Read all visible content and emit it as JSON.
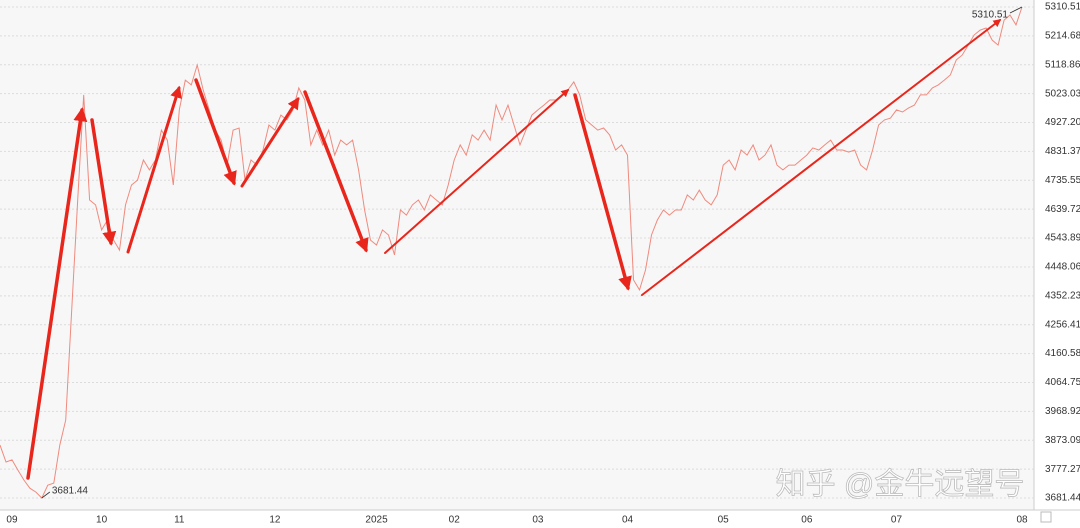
{
  "chart_data": {
    "type": "line",
    "watermark": "知乎 @金牛远望号",
    "categories": [
      null,
      null,
      "09",
      null,
      null,
      null,
      null,
      null,
      null,
      null,
      null,
      null,
      null,
      null,
      null,
      null,
      null,
      "10",
      null,
      null,
      null,
      null,
      null,
      null,
      null,
      null,
      null,
      null,
      null,
      null,
      "11",
      null,
      null,
      null,
      null,
      null,
      null,
      null,
      null,
      null,
      null,
      null,
      null,
      null,
      null,
      null,
      "12",
      null,
      null,
      null,
      null,
      null,
      null,
      null,
      null,
      null,
      null,
      null,
      null,
      null,
      null,
      null,
      null,
      "2025",
      null,
      null,
      null,
      null,
      null,
      null,
      null,
      null,
      null,
      null,
      null,
      null,
      "02",
      null,
      null,
      null,
      null,
      null,
      null,
      null,
      null,
      null,
      null,
      null,
      null,
      null,
      "03",
      null,
      null,
      null,
      null,
      null,
      null,
      null,
      null,
      null,
      null,
      null,
      null,
      null,
      null,
      "04",
      null,
      null,
      null,
      null,
      null,
      null,
      null,
      null,
      null,
      null,
      null,
      null,
      null,
      null,
      null,
      "05",
      null,
      null,
      null,
      null,
      null,
      null,
      null,
      null,
      null,
      null,
      null,
      null,
      null,
      "06",
      null,
      null,
      null,
      null,
      null,
      null,
      null,
      null,
      null,
      null,
      null,
      null,
      null,
      null,
      "07",
      null,
      null,
      null,
      null,
      null,
      null,
      null,
      null,
      null,
      null,
      null,
      null,
      null,
      null,
      null,
      null,
      null,
      null,
      null,
      null,
      "08"
    ],
    "series": [
      {
        "color": "#f08a7e",
        "values": [
          3857,
          3801,
          3808,
          3774,
          3741,
          3714,
          3701,
          3681.44,
          3724,
          3731,
          3857,
          3940,
          4305,
          4670,
          5019,
          4670,
          4654,
          4571,
          4604,
          4537,
          4504,
          4654,
          4720,
          4736,
          4803,
          4770,
          4803,
          4902,
          4869,
          4720,
          4969,
          5068,
          5052,
          5118,
          5035,
          4969,
          4902,
          4869,
          4786,
          4902,
          4909,
          4736,
          4803,
          4786,
          4836,
          4919,
          4902,
          4952,
          4936,
          4969,
          5042,
          5002,
          4853,
          4902,
          4853,
          4902,
          4819,
          4869,
          4853,
          4869,
          4770,
          4637,
          4537,
          4521,
          4571,
          4554,
          4488,
          4637,
          4620,
          4654,
          4670,
          4637,
          4687,
          4670,
          4654,
          4720,
          4803,
          4853,
          4819,
          4886,
          4869,
          4902,
          4869,
          4985,
          4936,
          4985,
          4919,
          4853,
          4902,
          4952,
          4969,
          4985,
          5002,
          5002,
          5019,
          5035,
          5062,
          5019,
          4936,
          4919,
          4902,
          4909,
          4886,
          4836,
          4853,
          4819,
          4405,
          4372,
          4438,
          4554,
          4604,
          4637,
          4620,
          4637,
          4637,
          4687,
          4670,
          4703,
          4670,
          4654,
          4687,
          4786,
          4803,
          4770,
          4836,
          4819,
          4853,
          4803,
          4819,
          4853,
          4786,
          4770,
          4786,
          4786,
          4803,
          4819,
          4843,
          4836,
          4853,
          4869,
          4836,
          4836,
          4829,
          4836,
          4786,
          4770,
          4836,
          4919,
          4936,
          4942,
          4969,
          4962,
          4975,
          4985,
          5019,
          5019,
          5042,
          5052,
          5068,
          5085,
          5135,
          5151,
          5184,
          5218,
          5234,
          5241,
          5201,
          5184,
          5267,
          5284,
          5251,
          5310.51
        ]
      }
    ],
    "min_label": "3681.44",
    "max_label": "5310.51",
    "ylim": [
      3681.44,
      5310.51
    ],
    "yticks": [
      5310.51,
      5214.68,
      5118.86,
      5023.03,
      {
        "value": 4927.2,
        "label": "4927.20"
      },
      4831.37,
      4735.55,
      4639.72,
      4543.89,
      4448.06,
      4352.23,
      4256.41,
      4160.58,
      4064.75,
      3968.92,
      3873.09,
      3777.27,
      3681.44
    ],
    "grid": true
  }
}
